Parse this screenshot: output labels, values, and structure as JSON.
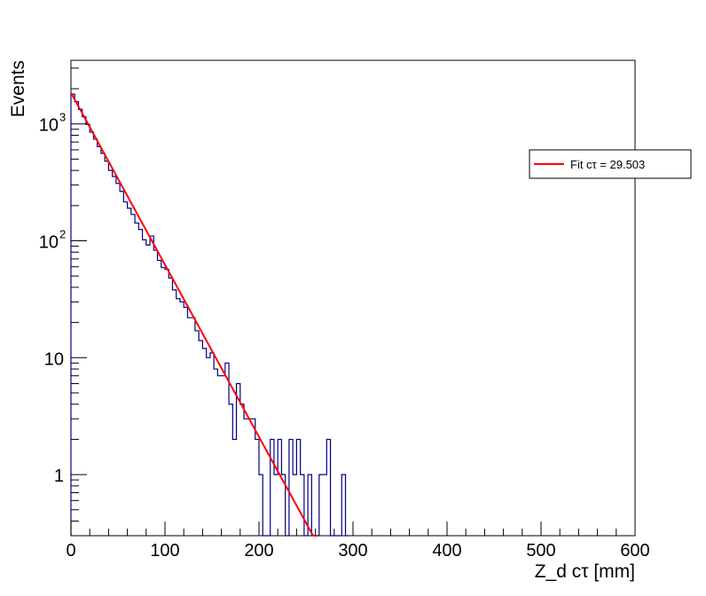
{
  "chart_data": {
    "type": "histogram",
    "title": "",
    "xlabel": "Z_d cτ [mm]",
    "ylabel": "Events",
    "xlim": [
      0,
      600
    ],
    "ylim": [
      0.3,
      3500
    ],
    "yscale": "log",
    "grid": false,
    "legend_position": "top-right",
    "x_ticks": [
      "0",
      "100",
      "200",
      "300",
      "400",
      "500",
      "600"
    ],
    "y_ticks": [
      {
        "value": 1,
        "label": "1"
      },
      {
        "value": 10,
        "label": "10"
      },
      {
        "value": 100,
        "label": "10",
        "exp": "2"
      },
      {
        "value": 1000,
        "label": "10",
        "exp": "3"
      }
    ],
    "bin_width": 4,
    "series": [
      {
        "kind": "histogram",
        "color": "#000080",
        "x_start": 0,
        "values": [
          1800,
          1550,
          1330,
          1150,
          990,
          850,
          740,
          640,
          560,
          480,
          400,
          355,
          310,
          265,
          215,
          190,
          168,
          142,
          125,
          102,
          92,
          110,
          83,
          68,
          59,
          57,
          48,
          38,
          32,
          30,
          27,
          22,
          22,
          17,
          14,
          12,
          10,
          11,
          8,
          7,
          7,
          9,
          4,
          2,
          6,
          4,
          3,
          3,
          3,
          2,
          1,
          0,
          0,
          2,
          1,
          2,
          1,
          0,
          2,
          1,
          2,
          1,
          0,
          1,
          0,
          0,
          1,
          1,
          2,
          0,
          0,
          0,
          1,
          0
        ]
      },
      {
        "kind": "fit",
        "name": "Fit cτ = 29.503",
        "color": "#ff0000",
        "amplitude": 1850,
        "ctau": 29.503,
        "x_range": [
          0,
          262
        ]
      }
    ]
  }
}
